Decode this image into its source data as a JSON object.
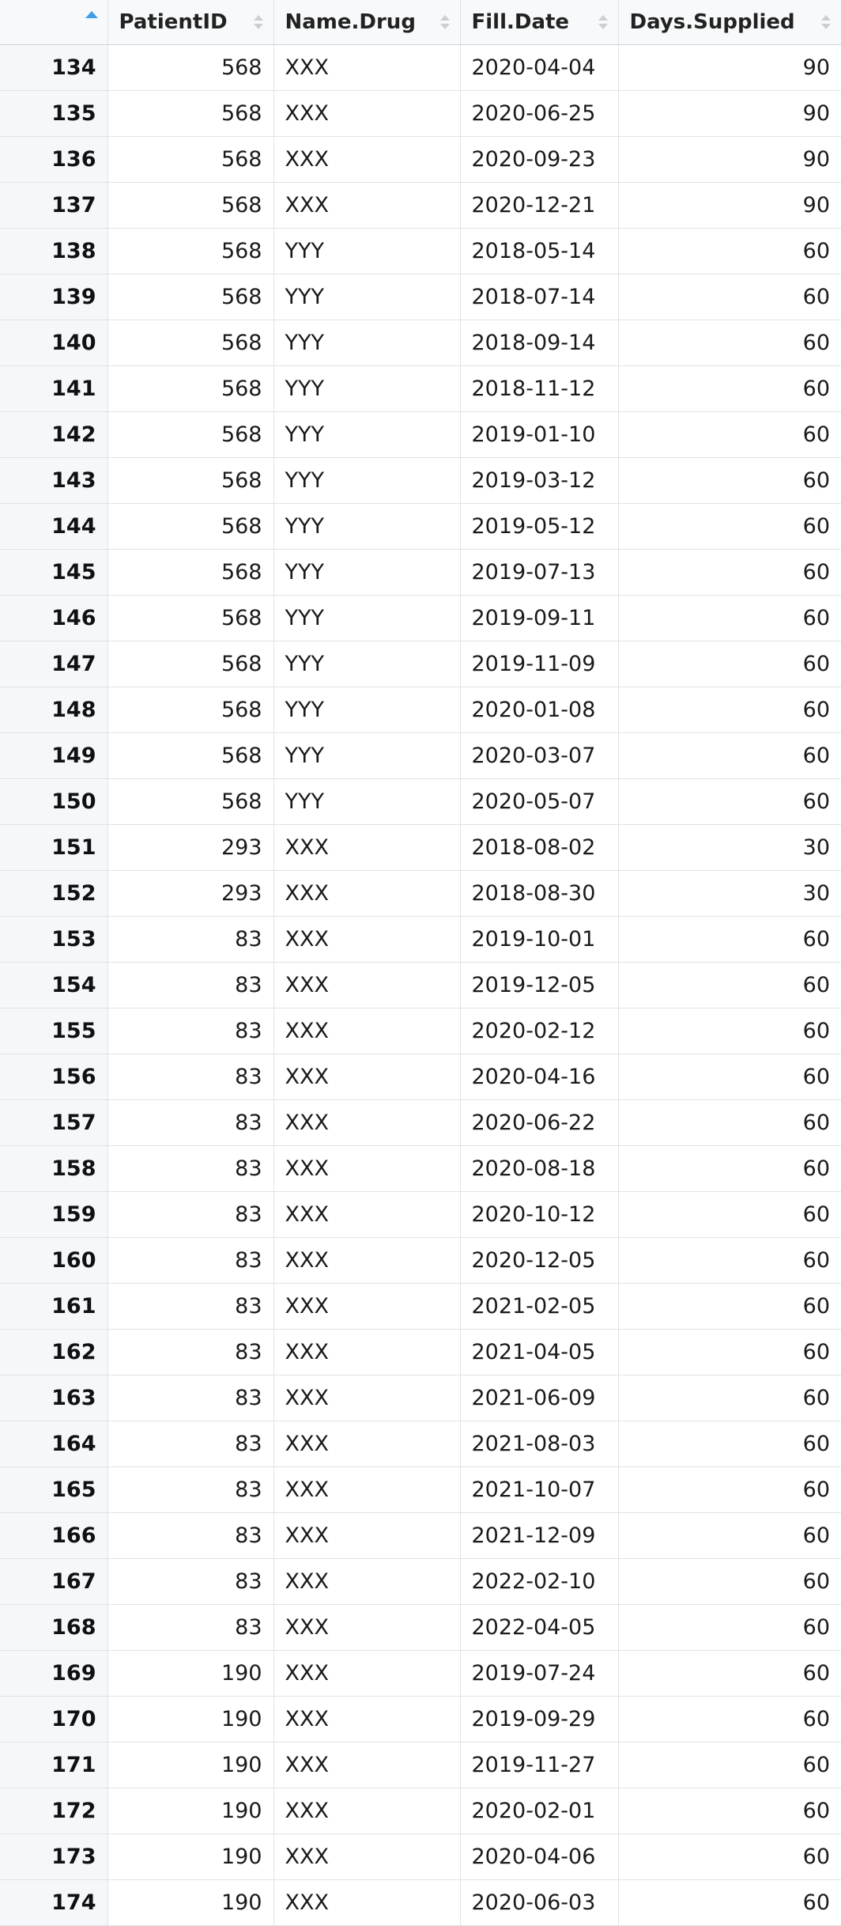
{
  "columns": [
    {
      "label": "",
      "align": "right"
    },
    {
      "label": "PatientID",
      "align": "right"
    },
    {
      "label": "Name.Drug",
      "align": "left"
    },
    {
      "label": "Fill.Date",
      "align": "left"
    },
    {
      "label": "Days.Supplied",
      "align": "right"
    }
  ],
  "sort": {
    "column": "row-index",
    "direction": "ascending"
  },
  "colors": {
    "sort_active": "#3d9ee6",
    "sort_inactive": "#c9cfd4",
    "grid": "#dfe3e6",
    "index_bg": "#f5f8fa"
  },
  "rows": [
    {
      "idx": "134",
      "pid": "568",
      "drug": "XXX",
      "date": "2020-04-04",
      "days": "90"
    },
    {
      "idx": "135",
      "pid": "568",
      "drug": "XXX",
      "date": "2020-06-25",
      "days": "90"
    },
    {
      "idx": "136",
      "pid": "568",
      "drug": "XXX",
      "date": "2020-09-23",
      "days": "90"
    },
    {
      "idx": "137",
      "pid": "568",
      "drug": "XXX",
      "date": "2020-12-21",
      "days": "90"
    },
    {
      "idx": "138",
      "pid": "568",
      "drug": "YYY",
      "date": "2018-05-14",
      "days": "60"
    },
    {
      "idx": "139",
      "pid": "568",
      "drug": "YYY",
      "date": "2018-07-14",
      "days": "60"
    },
    {
      "idx": "140",
      "pid": "568",
      "drug": "YYY",
      "date": "2018-09-14",
      "days": "60"
    },
    {
      "idx": "141",
      "pid": "568",
      "drug": "YYY",
      "date": "2018-11-12",
      "days": "60"
    },
    {
      "idx": "142",
      "pid": "568",
      "drug": "YYY",
      "date": "2019-01-10",
      "days": "60"
    },
    {
      "idx": "143",
      "pid": "568",
      "drug": "YYY",
      "date": "2019-03-12",
      "days": "60"
    },
    {
      "idx": "144",
      "pid": "568",
      "drug": "YYY",
      "date": "2019-05-12",
      "days": "60"
    },
    {
      "idx": "145",
      "pid": "568",
      "drug": "YYY",
      "date": "2019-07-13",
      "days": "60"
    },
    {
      "idx": "146",
      "pid": "568",
      "drug": "YYY",
      "date": "2019-09-11",
      "days": "60"
    },
    {
      "idx": "147",
      "pid": "568",
      "drug": "YYY",
      "date": "2019-11-09",
      "days": "60"
    },
    {
      "idx": "148",
      "pid": "568",
      "drug": "YYY",
      "date": "2020-01-08",
      "days": "60"
    },
    {
      "idx": "149",
      "pid": "568",
      "drug": "YYY",
      "date": "2020-03-07",
      "days": "60"
    },
    {
      "idx": "150",
      "pid": "568",
      "drug": "YYY",
      "date": "2020-05-07",
      "days": "60"
    },
    {
      "idx": "151",
      "pid": "293",
      "drug": "XXX",
      "date": "2018-08-02",
      "days": "30"
    },
    {
      "idx": "152",
      "pid": "293",
      "drug": "XXX",
      "date": "2018-08-30",
      "days": "30"
    },
    {
      "idx": "153",
      "pid": "83",
      "drug": "XXX",
      "date": "2019-10-01",
      "days": "60"
    },
    {
      "idx": "154",
      "pid": "83",
      "drug": "XXX",
      "date": "2019-12-05",
      "days": "60"
    },
    {
      "idx": "155",
      "pid": "83",
      "drug": "XXX",
      "date": "2020-02-12",
      "days": "60"
    },
    {
      "idx": "156",
      "pid": "83",
      "drug": "XXX",
      "date": "2020-04-16",
      "days": "60"
    },
    {
      "idx": "157",
      "pid": "83",
      "drug": "XXX",
      "date": "2020-06-22",
      "days": "60"
    },
    {
      "idx": "158",
      "pid": "83",
      "drug": "XXX",
      "date": "2020-08-18",
      "days": "60"
    },
    {
      "idx": "159",
      "pid": "83",
      "drug": "XXX",
      "date": "2020-10-12",
      "days": "60"
    },
    {
      "idx": "160",
      "pid": "83",
      "drug": "XXX",
      "date": "2020-12-05",
      "days": "60"
    },
    {
      "idx": "161",
      "pid": "83",
      "drug": "XXX",
      "date": "2021-02-05",
      "days": "60"
    },
    {
      "idx": "162",
      "pid": "83",
      "drug": "XXX",
      "date": "2021-04-05",
      "days": "60"
    },
    {
      "idx": "163",
      "pid": "83",
      "drug": "XXX",
      "date": "2021-06-09",
      "days": "60"
    },
    {
      "idx": "164",
      "pid": "83",
      "drug": "XXX",
      "date": "2021-08-03",
      "days": "60"
    },
    {
      "idx": "165",
      "pid": "83",
      "drug": "XXX",
      "date": "2021-10-07",
      "days": "60"
    },
    {
      "idx": "166",
      "pid": "83",
      "drug": "XXX",
      "date": "2021-12-09",
      "days": "60"
    },
    {
      "idx": "167",
      "pid": "83",
      "drug": "XXX",
      "date": "2022-02-10",
      "days": "60"
    },
    {
      "idx": "168",
      "pid": "83",
      "drug": "XXX",
      "date": "2022-04-05",
      "days": "60"
    },
    {
      "idx": "169",
      "pid": "190",
      "drug": "XXX",
      "date": "2019-07-24",
      "days": "60"
    },
    {
      "idx": "170",
      "pid": "190",
      "drug": "XXX",
      "date": "2019-09-29",
      "days": "60"
    },
    {
      "idx": "171",
      "pid": "190",
      "drug": "XXX",
      "date": "2019-11-27",
      "days": "60"
    },
    {
      "idx": "172",
      "pid": "190",
      "drug": "XXX",
      "date": "2020-02-01",
      "days": "60"
    },
    {
      "idx": "173",
      "pid": "190",
      "drug": "XXX",
      "date": "2020-04-06",
      "days": "60"
    },
    {
      "idx": "174",
      "pid": "190",
      "drug": "XXX",
      "date": "2020-06-03",
      "days": "60"
    }
  ]
}
